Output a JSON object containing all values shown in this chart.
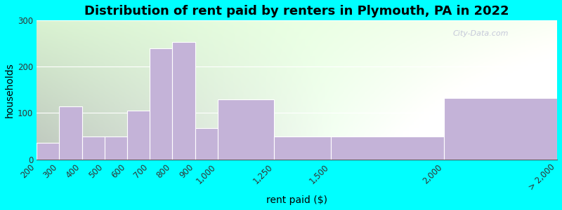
{
  "title": "Distribution of rent paid by renters in Plymouth, PA in 2022",
  "xlabel": "rent paid ($)",
  "ylabel": "households",
  "bar_color": "#c4b3d8",
  "bar_edgecolor": "#ffffff",
  "outer_bg": "#00ffff",
  "yticks": [
    0,
    100,
    200,
    300
  ],
  "ylim": [
    0,
    300
  ],
  "title_fontsize": 13,
  "axis_label_fontsize": 10,
  "tick_label_fontsize": 8.5,
  "watermark_text": "City-Data.com",
  "bin_edges": [
    200,
    300,
    400,
    500,
    600,
    700,
    800,
    900,
    1000,
    1250,
    1500,
    2000,
    2500
  ],
  "bin_heights": [
    35,
    115,
    50,
    50,
    105,
    240,
    253,
    68,
    130,
    50,
    50,
    133
  ],
  "tick_positions": [
    200,
    300,
    400,
    500,
    600,
    700,
    800,
    900,
    1000,
    1250,
    1500,
    2000,
    2500
  ],
  "tick_labels": [
    "200",
    "300",
    "400",
    "500",
    "600",
    "700",
    "800",
    "900",
    "1,000",
    "1,250",
    "1,500",
    "2,000",
    "> 2,000"
  ],
  "xlim": [
    200,
    2500
  ]
}
